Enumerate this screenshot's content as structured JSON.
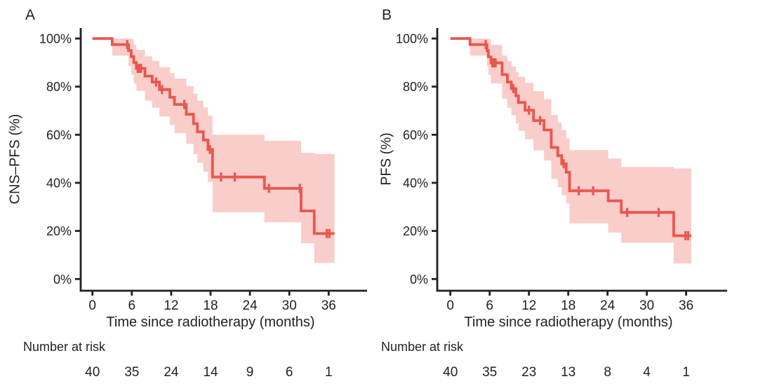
{
  "colors": {
    "curve": "#e8574f",
    "band": "#f9cdc9",
    "axis": "#231f20",
    "text": "#231f20",
    "background": "#ffffff"
  },
  "chart_data": [
    {
      "type": "line",
      "subtype": "kaplan-meier-step",
      "panel_label": "A",
      "ylabel": "CNS–PFS (%)",
      "xlabel": "Time since radiotherapy (months)",
      "x_ticks": [
        0,
        6,
        12,
        18,
        24,
        30,
        36
      ],
      "y_ticks": [
        {
          "v": 0,
          "label": "0%"
        },
        {
          "v": 20,
          "label": "20%"
        },
        {
          "v": 40,
          "label": "40%"
        },
        {
          "v": 60,
          "label": "60%"
        },
        {
          "v": 80,
          "label": "80%"
        },
        {
          "v": 100,
          "label": "100%"
        }
      ],
      "xlim": [
        0,
        39
      ],
      "ylim": [
        0,
        100
      ],
      "grid": false,
      "legend": "none",
      "risk_label": "Number at risk",
      "risk_numbers": [
        40,
        35,
        24,
        14,
        9,
        6,
        1
      ],
      "end_time": 36.9,
      "steps": [
        {
          "t": 0.0,
          "s": 100.0,
          "lo": 100.0,
          "hi": 100.0
        },
        {
          "t": 3.0,
          "s": 97.5,
          "lo": 92.9,
          "hi": 100.0
        },
        {
          "t": 5.5,
          "s": 95.0,
          "lo": 88.6,
          "hi": 100.0
        },
        {
          "t": 5.9,
          "s": 92.5,
          "lo": 85.0,
          "hi": 99.8
        },
        {
          "t": 6.3,
          "s": 90.0,
          "lo": 81.3,
          "hi": 97.4
        },
        {
          "t": 6.7,
          "s": 87.6,
          "lo": 78.2,
          "hi": 95.3
        },
        {
          "t": 8.0,
          "s": 84.4,
          "lo": 74.2,
          "hi": 92.6
        },
        {
          "t": 9.1,
          "s": 81.9,
          "lo": 71.2,
          "hi": 90.7
        },
        {
          "t": 10.2,
          "s": 78.8,
          "lo": 67.6,
          "hi": 88.1
        },
        {
          "t": 11.8,
          "s": 75.6,
          "lo": 64.0,
          "hi": 85.6
        },
        {
          "t": 12.5,
          "s": 72.6,
          "lo": 60.7,
          "hi": 83.3
        },
        {
          "t": 14.3,
          "s": 68.5,
          "lo": 56.2,
          "hi": 80.2
        },
        {
          "t": 15.4,
          "s": 64.6,
          "lo": 51.9,
          "hi": 77.1
        },
        {
          "t": 16.0,
          "s": 61.2,
          "lo": 48.3,
          "hi": 74.2
        },
        {
          "t": 16.9,
          "s": 57.8,
          "lo": 44.6,
          "hi": 71.3
        },
        {
          "t": 17.6,
          "s": 53.9,
          "lo": 40.4,
          "hi": 67.9
        },
        {
          "t": 18.3,
          "s": 42.4,
          "lo": 27.8,
          "hi": 60.0
        },
        {
          "t": 26.2,
          "s": 37.7,
          "lo": 23.6,
          "hi": 57.5
        },
        {
          "t": 31.8,
          "s": 28.3,
          "lo": 14.9,
          "hi": 52.5
        },
        {
          "t": 33.8,
          "s": 18.9,
          "lo": 6.7,
          "hi": 52.0
        }
      ],
      "censors": [
        {
          "t": 5.3,
          "s": 97.5
        },
        {
          "t": 6.9,
          "s": 87.6
        },
        {
          "t": 7.1,
          "s": 87.6
        },
        {
          "t": 7.4,
          "s": 87.6
        },
        {
          "t": 9.7,
          "s": 81.9
        },
        {
          "t": 10.6,
          "s": 78.8
        },
        {
          "t": 14.0,
          "s": 72.6
        },
        {
          "t": 17.9,
          "s": 53.9
        },
        {
          "t": 19.6,
          "s": 42.4
        },
        {
          "t": 21.7,
          "s": 42.4
        },
        {
          "t": 26.9,
          "s": 37.7
        },
        {
          "t": 31.6,
          "s": 37.7
        },
        {
          "t": 35.7,
          "s": 18.9
        },
        {
          "t": 36.1,
          "s": 18.9
        }
      ]
    },
    {
      "type": "line",
      "subtype": "kaplan-meier-step",
      "panel_label": "B",
      "ylabel": "PFS (%)",
      "xlabel": "Time since radiotherapy (months)",
      "x_ticks": [
        0,
        6,
        12,
        18,
        24,
        30,
        36
      ],
      "y_ticks": [
        {
          "v": 0,
          "label": "0%"
        },
        {
          "v": 20,
          "label": "20%"
        },
        {
          "v": 40,
          "label": "40%"
        },
        {
          "v": 60,
          "label": "60%"
        },
        {
          "v": 80,
          "label": "80%"
        },
        {
          "v": 100,
          "label": "100%"
        }
      ],
      "xlim": [
        0,
        39
      ],
      "ylim": [
        0,
        100
      ],
      "grid": false,
      "legend": "none",
      "risk_label": "Number at risk",
      "risk_numbers": [
        40,
        35,
        23,
        13,
        8,
        4,
        1
      ],
      "end_time": 36.8,
      "steps": [
        {
          "t": 0.0,
          "s": 100.0,
          "lo": 100.0,
          "hi": 100.0
        },
        {
          "t": 3.0,
          "s": 97.5,
          "lo": 92.9,
          "hi": 100.0
        },
        {
          "t": 5.6,
          "s": 95.0,
          "lo": 88.6,
          "hi": 100.0
        },
        {
          "t": 5.8,
          "s": 92.4,
          "lo": 85.0,
          "hi": 99.8
        },
        {
          "t": 6.2,
          "s": 89.9,
          "lo": 81.3,
          "hi": 97.4
        },
        {
          "t": 7.9,
          "s": 85.0,
          "lo": 75.0,
          "hi": 92.9
        },
        {
          "t": 8.7,
          "s": 81.9,
          "lo": 71.2,
          "hi": 90.7
        },
        {
          "t": 9.3,
          "s": 79.2,
          "lo": 68.1,
          "hi": 88.4
        },
        {
          "t": 10.0,
          "s": 76.2,
          "lo": 64.7,
          "hi": 86.1
        },
        {
          "t": 10.4,
          "s": 73.4,
          "lo": 61.6,
          "hi": 84.1
        },
        {
          "t": 11.4,
          "s": 70.2,
          "lo": 58.1,
          "hi": 81.6
        },
        {
          "t": 12.7,
          "s": 65.9,
          "lo": 53.5,
          "hi": 78.1
        },
        {
          "t": 14.3,
          "s": 62.0,
          "lo": 49.3,
          "hi": 74.8
        },
        {
          "t": 15.4,
          "s": 54.7,
          "lo": 41.6,
          "hi": 68.2
        },
        {
          "t": 16.4,
          "s": 51.3,
          "lo": 38.2,
          "hi": 65.1
        },
        {
          "t": 17.0,
          "s": 47.9,
          "lo": 34.8,
          "hi": 61.9
        },
        {
          "t": 17.7,
          "s": 44.4,
          "lo": 31.4,
          "hi": 58.5
        },
        {
          "t": 18.2,
          "s": 36.7,
          "lo": 23.2,
          "hi": 53.6
        },
        {
          "t": 24.1,
          "s": 32.5,
          "lo": 19.3,
          "hi": 50.1
        },
        {
          "t": 26.1,
          "s": 27.7,
          "lo": 15.1,
          "hi": 46.6
        },
        {
          "t": 34.1,
          "s": 18.0,
          "lo": 6.5,
          "hi": 46.0
        }
      ],
      "censors": [
        {
          "t": 5.4,
          "s": 97.5
        },
        {
          "t": 6.4,
          "s": 89.9
        },
        {
          "t": 6.6,
          "s": 89.9
        },
        {
          "t": 6.9,
          "s": 89.9
        },
        {
          "t": 9.6,
          "s": 79.2
        },
        {
          "t": 12.0,
          "s": 70.2
        },
        {
          "t": 13.7,
          "s": 65.9
        },
        {
          "t": 17.3,
          "s": 47.9
        },
        {
          "t": 19.6,
          "s": 36.7
        },
        {
          "t": 21.8,
          "s": 36.7
        },
        {
          "t": 27.0,
          "s": 27.7
        },
        {
          "t": 31.8,
          "s": 27.7
        },
        {
          "t": 35.9,
          "s": 18.0
        },
        {
          "t": 36.3,
          "s": 18.0
        }
      ]
    }
  ]
}
